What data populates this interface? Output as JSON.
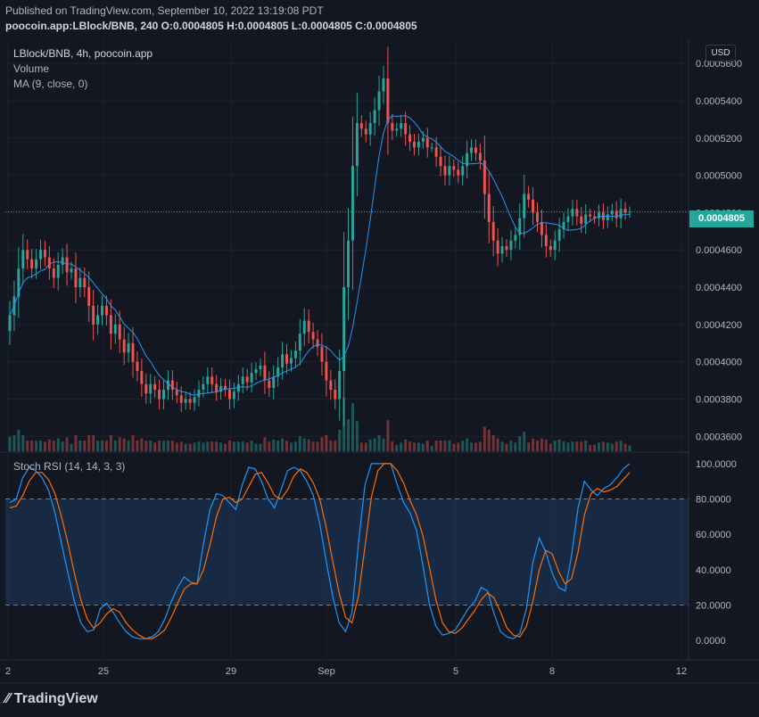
{
  "header": {
    "published": "Published on TradingView.com, September 10, 2022 13:19:08 PDT",
    "symbol_line": "poocoin.app:LBlock/BNB, 240 O:0.0004805 H:0.0004805 L:0.0004805 C:0.0004805"
  },
  "legend": {
    "title": "LBlock/BNB, 4h, poocoin.app",
    "volume": "Volume",
    "ma": "MA (9, close, 0)",
    "rsi": "Stoch RSI (14, 14, 3, 3)"
  },
  "currency": "USD",
  "last_price_label": "0.0004805",
  "brand": "TradingView",
  "colors": {
    "up": "#26a69a",
    "down": "#ef5350",
    "ma": "#2196f3",
    "k": "#2196f3",
    "d": "#ff6d00",
    "bg": "#131722"
  },
  "chart_data": [
    {
      "type": "candlestick",
      "title": "LBlock/BNB, 4h, poocoin.app",
      "y_ticks": [
        "0.0003600",
        "0.0003800",
        "0.0004000",
        "0.0004200",
        "0.0004400",
        "0.0004600",
        "0.0004800",
        "0.0005000",
        "0.0005200",
        "0.0005400",
        "0.0005600"
      ],
      "ylim": [
        0.000352,
        0.000573
      ],
      "x_ticks": [
        "2",
        "25",
        "29",
        "Sep",
        "5",
        "8",
        "12"
      ],
      "last_price": 0.0004805,
      "close": [
        0.000425,
        0.000435,
        0.00045,
        0.00046,
        0.000455,
        0.00045,
        0.000455,
        0.00046,
        0.000456,
        0.00045,
        0.000445,
        0.000452,
        0.000456,
        0.000448,
        0.00045,
        0.00044,
        0.000445,
        0.00044,
        0.00043,
        0.00042,
        0.000425,
        0.00043,
        0.000425,
        0.000415,
        0.00042,
        0.000412,
        0.000405,
        0.00041,
        0.0004,
        0.000395,
        0.000388,
        0.000383,
        0.000388,
        0.000385,
        0.00038,
        0.000385,
        0.00039,
        0.000385,
        0.000382,
        0.000378,
        0.00038,
        0.000378,
        0.000381,
        0.000385,
        0.000388,
        0.000392,
        0.000388,
        0.000384,
        0.000387,
        0.000385,
        0.00038,
        0.000384,
        0.000388,
        0.000392,
        0.000389,
        0.000394,
        0.000396,
        0.000398,
        0.00039,
        0.000386,
        0.000392,
        0.000397,
        0.000404,
        0.000399,
        0.000402,
        0.000406,
        0.000415,
        0.000422,
        0.000416,
        0.000412,
        0.000408,
        0.0004,
        0.00039,
        0.000385,
        0.00038,
        0.000395,
        0.00044,
        0.000465,
        0.000505,
        0.000528,
        0.000525,
        0.000522,
        0.000528,
        0.000535,
        0.000545,
        0.000552,
        0.000528,
        0.000524,
        0.000525,
        0.000528,
        0.000522,
        0.000518,
        0.000515,
        0.000518,
        0.00052,
        0.000515,
        0.000515,
        0.00051,
        0.000505,
        0.0005,
        0.000505,
        0.000503,
        0.0005,
        0.000505,
        0.000512,
        0.000515,
        0.000512,
        0.000508,
        0.00049,
        0.000475,
        0.000465,
        0.000458,
        0.000462,
        0.00046,
        0.000465,
        0.000468,
        0.000477,
        0.00049,
        0.000487,
        0.00048,
        0.000475,
        0.000468,
        0.000462,
        0.00046,
        0.000465,
        0.000471,
        0.000475,
        0.000478,
        0.000482,
        0.000478,
        0.000474,
        0.000479,
        0.000478,
        0.000477,
        0.00048,
        0.000476,
        0.000479,
        0.000481,
        0.000477,
        0.000482,
        0.00048,
        0.0004805
      ],
      "ma_note": "MA (9, close, 0)"
    },
    {
      "type": "bar",
      "title": "Volume",
      "note": "volume histogram colored by candle direction"
    },
    {
      "type": "line",
      "title": "Stoch RSI (14, 14, 3, 3)",
      "y_ticks": [
        "0.0000",
        "20.0000",
        "40.0000",
        "60.0000",
        "80.0000",
        "100.0000"
      ],
      "ylim": [
        -10,
        106
      ],
      "bands": [
        20,
        80
      ],
      "series": [
        {
          "name": "K",
          "values": [
            78,
            80,
            92,
            98,
            96,
            92,
            85,
            72,
            55,
            38,
            22,
            10,
            5,
            6,
            18,
            21,
            16,
            10,
            5,
            2,
            1,
            1,
            2,
            5,
            12,
            22,
            30,
            36,
            33,
            32,
            55,
            74,
            83,
            82,
            78,
            74,
            88,
            98,
            97,
            90,
            80,
            75,
            85,
            96,
            98,
            96,
            90,
            82,
            66,
            45,
            25,
            10,
            5,
            16,
            55,
            88,
            100,
            100,
            100,
            100,
            88,
            78,
            72,
            62,
            42,
            20,
            8,
            3,
            4,
            6,
            12,
            18,
            22,
            30,
            28,
            15,
            5,
            2,
            1,
            4,
            18,
            44,
            58,
            50,
            38,
            30,
            28,
            48,
            75,
            90,
            85,
            82,
            86,
            88,
            92,
            97,
            100
          ]
        },
        {
          "name": "D",
          "values": [
            75,
            76,
            82,
            90,
            95,
            95,
            91,
            83,
            70,
            55,
            38,
            23,
            12,
            7,
            10,
            15,
            18,
            16,
            10,
            6,
            3,
            1,
            1,
            3,
            6,
            13,
            21,
            29,
            32,
            32,
            40,
            54,
            70,
            80,
            81,
            78,
            80,
            87,
            94,
            95,
            89,
            82,
            80,
            85,
            93,
            97,
            95,
            89,
            80,
            64,
            45,
            27,
            13,
            10,
            25,
            53,
            81,
            96,
            100,
            100,
            96,
            89,
            79,
            71,
            59,
            41,
            23,
            10,
            5,
            4,
            7,
            12,
            17,
            23,
            27,
            24,
            16,
            7,
            3,
            2,
            8,
            22,
            40,
            51,
            49,
            39,
            32,
            35,
            50,
            71,
            83,
            86,
            84,
            85,
            87,
            91,
            95
          ]
        }
      ]
    }
  ]
}
